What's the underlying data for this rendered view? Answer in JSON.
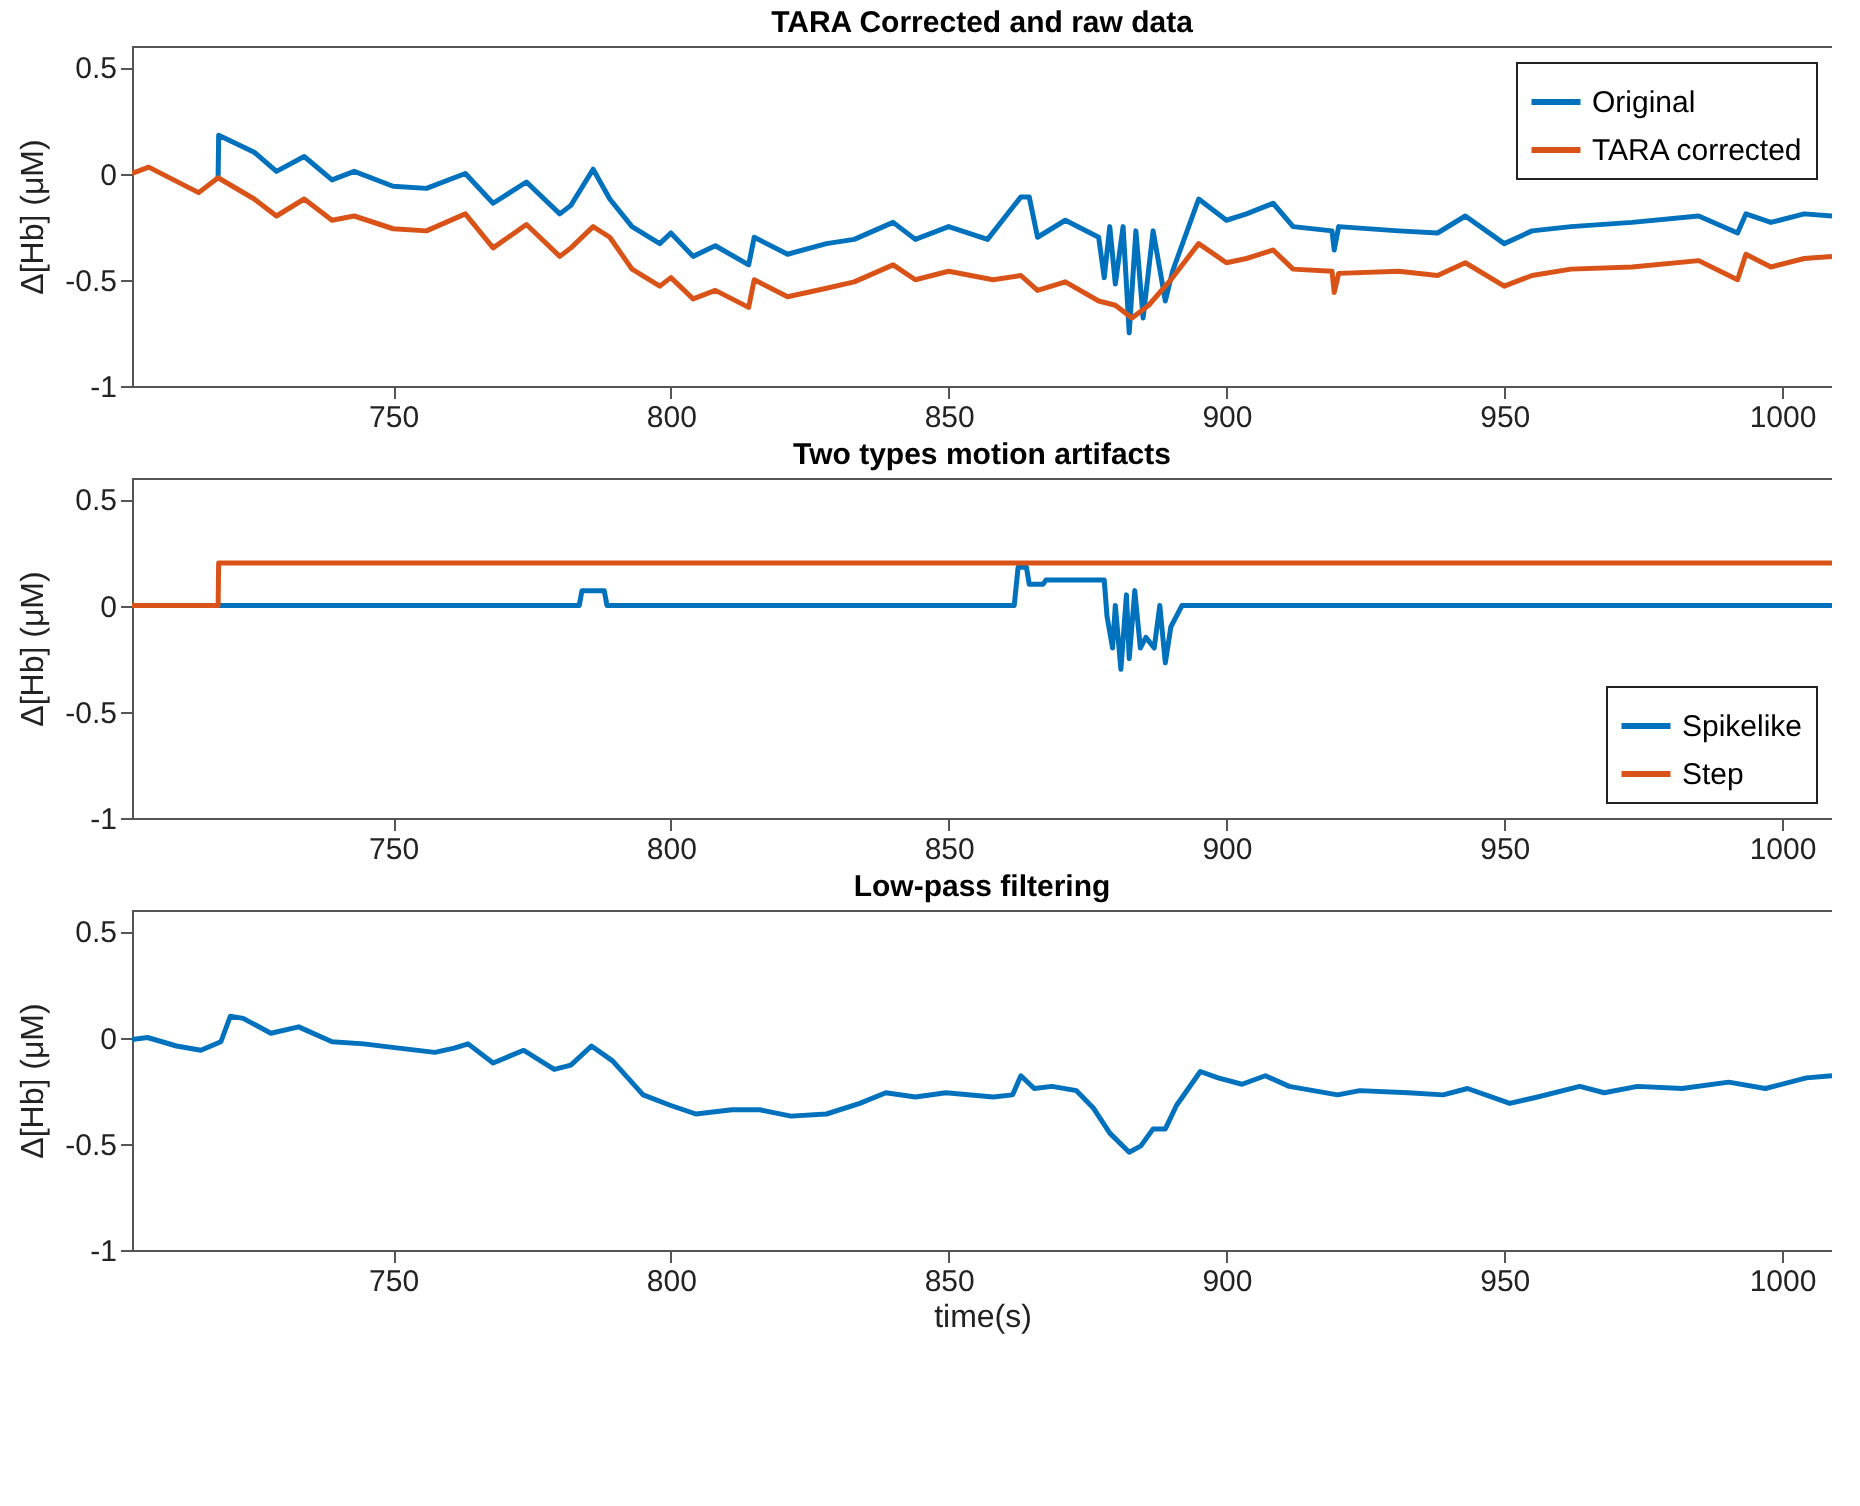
{
  "chart_data": [
    {
      "type": "line",
      "title": "TARA Corrected and raw data",
      "ylabel": "Δ[Hb] (μM)",
      "xlim": [
        703,
        1009
      ],
      "ylim": [
        -1,
        0.6
      ],
      "xticks": [
        750,
        800,
        850,
        900,
        950,
        1000
      ],
      "yticks": [
        -1,
        -0.5,
        0,
        0.5
      ],
      "legend": "top right",
      "series": [
        {
          "name": "Original",
          "color": "#0072bd",
          "x": [
            718.5,
            718.6,
            725,
            729,
            734,
            739,
            743,
            750,
            756,
            763,
            768,
            774,
            780,
            782,
            786,
            789,
            793,
            798,
            800,
            804,
            808,
            814,
            815,
            821,
            828,
            833,
            840,
            844,
            850,
            857,
            863,
            864.5,
            866,
            871,
            877,
            878,
            879,
            880,
            881.4,
            882.5,
            883.7,
            885,
            886.8,
            889,
            890.3,
            895,
            900,
            903.6,
            908.4,
            912,
            919,
            919.4,
            920.2,
            931,
            938,
            943,
            950,
            955,
            962,
            973,
            985,
            992,
            993.5,
            998,
            1004,
            1009
          ],
          "values": [
            -0.02,
            0.18,
            0.1,
            0.01,
            0.08,
            -0.03,
            0.01,
            -0.06,
            -0.07,
            0,
            -0.14,
            -0.04,
            -0.19,
            -0.15,
            0.02,
            -0.12,
            -0.25,
            -0.33,
            -0.28,
            -0.39,
            -0.34,
            -0.43,
            -0.3,
            -0.38,
            -0.33,
            -0.31,
            -0.23,
            -0.31,
            -0.25,
            -0.31,
            -0.11,
            -0.11,
            -0.3,
            -0.22,
            -0.3,
            -0.49,
            -0.25,
            -0.52,
            -0.25,
            -0.75,
            -0.27,
            -0.68,
            -0.27,
            -0.6,
            -0.46,
            -0.12,
            -0.22,
            -0.19,
            -0.14,
            -0.25,
            -0.27,
            -0.36,
            -0.25,
            -0.27,
            -0.28,
            -0.2,
            -0.33,
            -0.27,
            -0.25,
            -0.23,
            -0.2,
            -0.28,
            -0.19,
            -0.23,
            -0.19,
            -0.2
          ]
        },
        {
          "name": "TARA corrected",
          "color": "#d95319",
          "x": [
            703,
            706,
            712,
            715,
            718.5,
            725,
            729,
            734,
            739,
            743,
            750,
            756,
            763,
            768,
            774,
            780,
            782,
            786,
            789,
            793,
            798,
            800,
            804,
            808,
            814,
            815,
            821,
            828,
            833,
            840,
            844,
            850,
            858,
            863,
            866,
            871,
            877,
            880,
            883,
            886,
            890,
            895,
            900,
            903.6,
            908.4,
            912,
            919,
            919.4,
            920.2,
            931,
            938,
            943,
            950,
            955,
            962,
            973,
            985,
            992,
            993.5,
            998,
            1004,
            1009
          ],
          "values": [
            0,
            0.03,
            -0.05,
            -0.09,
            -0.02,
            -0.12,
            -0.2,
            -0.12,
            -0.22,
            -0.2,
            -0.26,
            -0.27,
            -0.19,
            -0.35,
            -0.24,
            -0.39,
            -0.35,
            -0.25,
            -0.3,
            -0.45,
            -0.53,
            -0.49,
            -0.59,
            -0.55,
            -0.63,
            -0.5,
            -0.58,
            -0.54,
            -0.51,
            -0.43,
            -0.5,
            -0.46,
            -0.5,
            -0.48,
            -0.55,
            -0.51,
            -0.6,
            -0.62,
            -0.68,
            -0.62,
            -0.5,
            -0.33,
            -0.42,
            -0.4,
            -0.36,
            -0.45,
            -0.46,
            -0.56,
            -0.47,
            -0.46,
            -0.48,
            -0.42,
            -0.53,
            -0.48,
            -0.45,
            -0.44,
            -0.41,
            -0.5,
            -0.38,
            -0.44,
            -0.4,
            -0.39
          ]
        }
      ]
    },
    {
      "type": "line",
      "title": "Two types motion artifacts",
      "ylabel": "Δ[Hb] (μM)",
      "xlim": [
        703,
        1009
      ],
      "ylim": [
        -1,
        0.6
      ],
      "xticks": [
        750,
        800,
        850,
        900,
        950,
        1000
      ],
      "yticks": [
        -1,
        -0.5,
        0,
        0.5
      ],
      "legend": "bottom right",
      "series": [
        {
          "name": "Spikelike",
          "color": "#0072bd",
          "x": [
            718.5,
            783.5,
            784,
            788,
            788.5,
            861.8,
            862.5,
            864,
            864.5,
            867,
            867.5,
            878,
            878.5,
            879.5,
            880,
            881,
            882,
            882.5,
            883.5,
            884.5,
            885.5,
            887,
            888,
            889,
            890,
            891,
            892,
            893,
            1009
          ],
          "values": [
            0,
            0,
            0.07,
            0.07,
            0,
            0,
            0.18,
            0.18,
            0.1,
            0.1,
            0.12,
            0.12,
            -0.05,
            -0.2,
            0,
            -0.3,
            0.05,
            -0.25,
            0.07,
            -0.2,
            -0.15,
            -0.2,
            0,
            -0.27,
            -0.1,
            -0.05,
            0,
            0,
            0
          ]
        },
        {
          "name": "Step",
          "color": "#d95319",
          "x": [
            703,
            718.5,
            718.6,
            1009
          ],
          "values": [
            0,
            0,
            0.2,
            0.2
          ]
        }
      ]
    },
    {
      "type": "line",
      "title": "Low-pass filtering",
      "ylabel": "Δ[Hb] (μM)",
      "xlabel": "time(s)",
      "xlim": [
        703,
        1009
      ],
      "ylim": [
        -1,
        0.6
      ],
      "xticks": [
        750,
        800,
        850,
        900,
        950,
        1000
      ],
      "yticks": [
        -1,
        -0.5,
        0,
        0.5
      ],
      "series": [
        {
          "color": "#0072bd",
          "x": [
            703,
            705.8,
            711,
            715.4,
            719,
            720.7,
            723,
            728,
            733,
            739,
            744.7,
            751,
            757.5,
            761,
            763.5,
            768,
            773.5,
            779,
            782,
            785.7,
            789.5,
            795,
            800,
            804.5,
            811,
            816,
            821.6,
            828,
            834,
            838.7,
            844,
            849.5,
            858,
            861.5,
            863,
            865.4,
            868.6,
            873,
            876,
            879,
            882.5,
            884.6,
            886.8,
            889,
            891,
            895.3,
            898.5,
            902.8,
            907,
            911.3,
            920,
            924,
            932.7,
            939,
            943.4,
            951,
            956,
            963.6,
            968,
            974,
            982,
            990.4,
            997,
            1004.4,
            1009
          ],
          "values": [
            -0.01,
            0,
            -0.04,
            -0.06,
            -0.02,
            0.1,
            0.09,
            0.02,
            0.05,
            -0.02,
            -0.03,
            -0.05,
            -0.07,
            -0.05,
            -0.03,
            -0.12,
            -0.06,
            -0.15,
            -0.13,
            -0.04,
            -0.11,
            -0.27,
            -0.32,
            -0.36,
            -0.34,
            -0.34,
            -0.37,
            -0.36,
            -0.31,
            -0.26,
            -0.28,
            -0.26,
            -0.28,
            -0.27,
            -0.18,
            -0.24,
            -0.23,
            -0.25,
            -0.33,
            -0.45,
            -0.54,
            -0.51,
            -0.43,
            -0.43,
            -0.32,
            -0.16,
            -0.19,
            -0.22,
            -0.18,
            -0.23,
            -0.27,
            -0.25,
            -0.26,
            -0.27,
            -0.24,
            -0.31,
            -0.28,
            -0.23,
            -0.26,
            -0.23,
            -0.24,
            -0.21,
            -0.24,
            -0.19,
            -0.18
          ]
        }
      ]
    }
  ]
}
